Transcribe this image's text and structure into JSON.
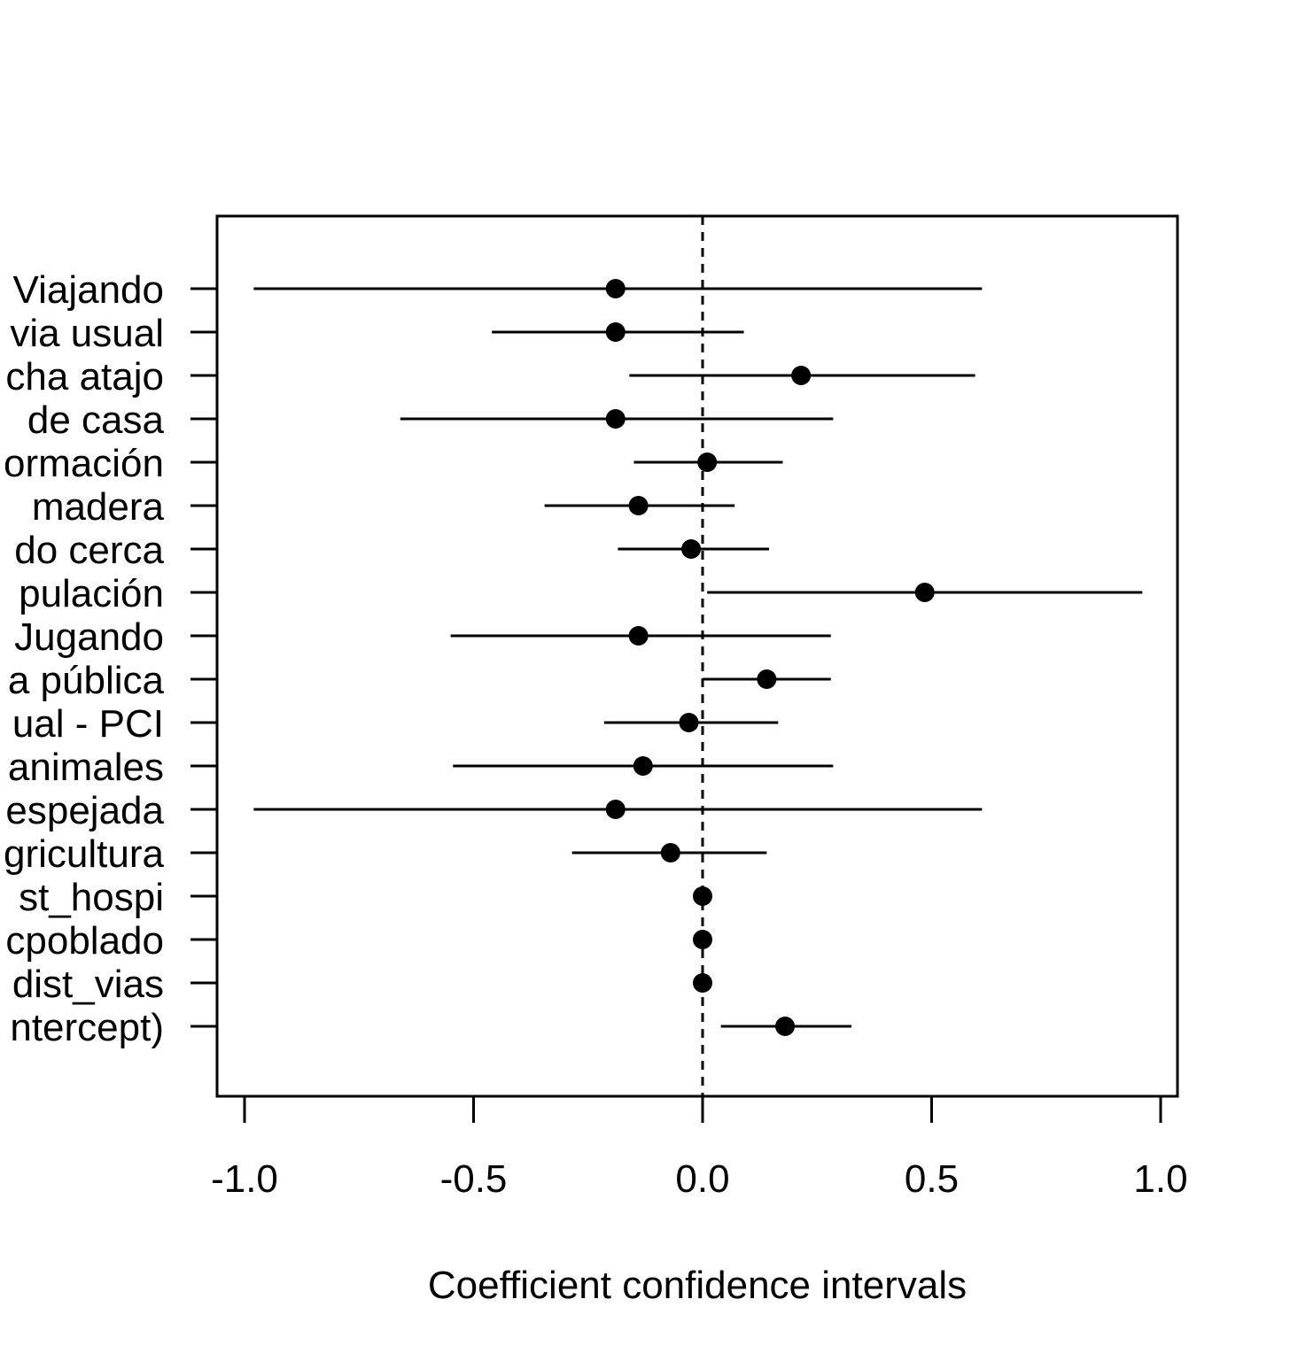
{
  "chart_data": {
    "type": "scatter",
    "xlabel": "Coefficient confidence intervals",
    "ylabel": "",
    "xlim": [
      -1.0,
      1.0
    ],
    "x_ticks": [
      -1.0,
      -0.5,
      0.0,
      0.5,
      1.0
    ],
    "x_tick_labels": [
      "-1.0",
      "-0.5",
      "0.0",
      "0.5",
      "1.0"
    ],
    "reference_line": 0.0,
    "grid": false,
    "legend": "none",
    "categories": [
      "Viajando",
      "via usual",
      "cha atajo",
      "de casa",
      "ormación",
      "madera",
      "do cerca",
      "pulación",
      "Jugando",
      "a pública",
      "ual - PCI",
      "animales",
      "espejada",
      "gricultura",
      "st_hospi",
      "cpoblado",
      "dist_vias",
      "ntercept)"
    ],
    "estimate": [
      -0.19,
      -0.19,
      0.215,
      -0.19,
      0.01,
      -0.14,
      -0.025,
      0.485,
      -0.14,
      0.14,
      -0.03,
      -0.13,
      -0.19,
      -0.07,
      0.0,
      0.0,
      0.0,
      0.18
    ],
    "lower": [
      -0.98,
      -0.46,
      -0.16,
      -0.66,
      -0.15,
      -0.345,
      -0.185,
      0.01,
      -0.55,
      0.0,
      -0.215,
      -0.545,
      -0.98,
      -0.285,
      0.0,
      0.0,
      0.0,
      0.04
    ],
    "upper": [
      0.61,
      0.09,
      0.595,
      0.285,
      0.175,
      0.07,
      0.145,
      0.96,
      0.28,
      0.28,
      0.165,
      0.285,
      0.61,
      0.14,
      0.0,
      0.0,
      0.0,
      0.325
    ],
    "colors": {
      "point": "#000000",
      "line": "#000000",
      "frame": "#000000"
    }
  }
}
